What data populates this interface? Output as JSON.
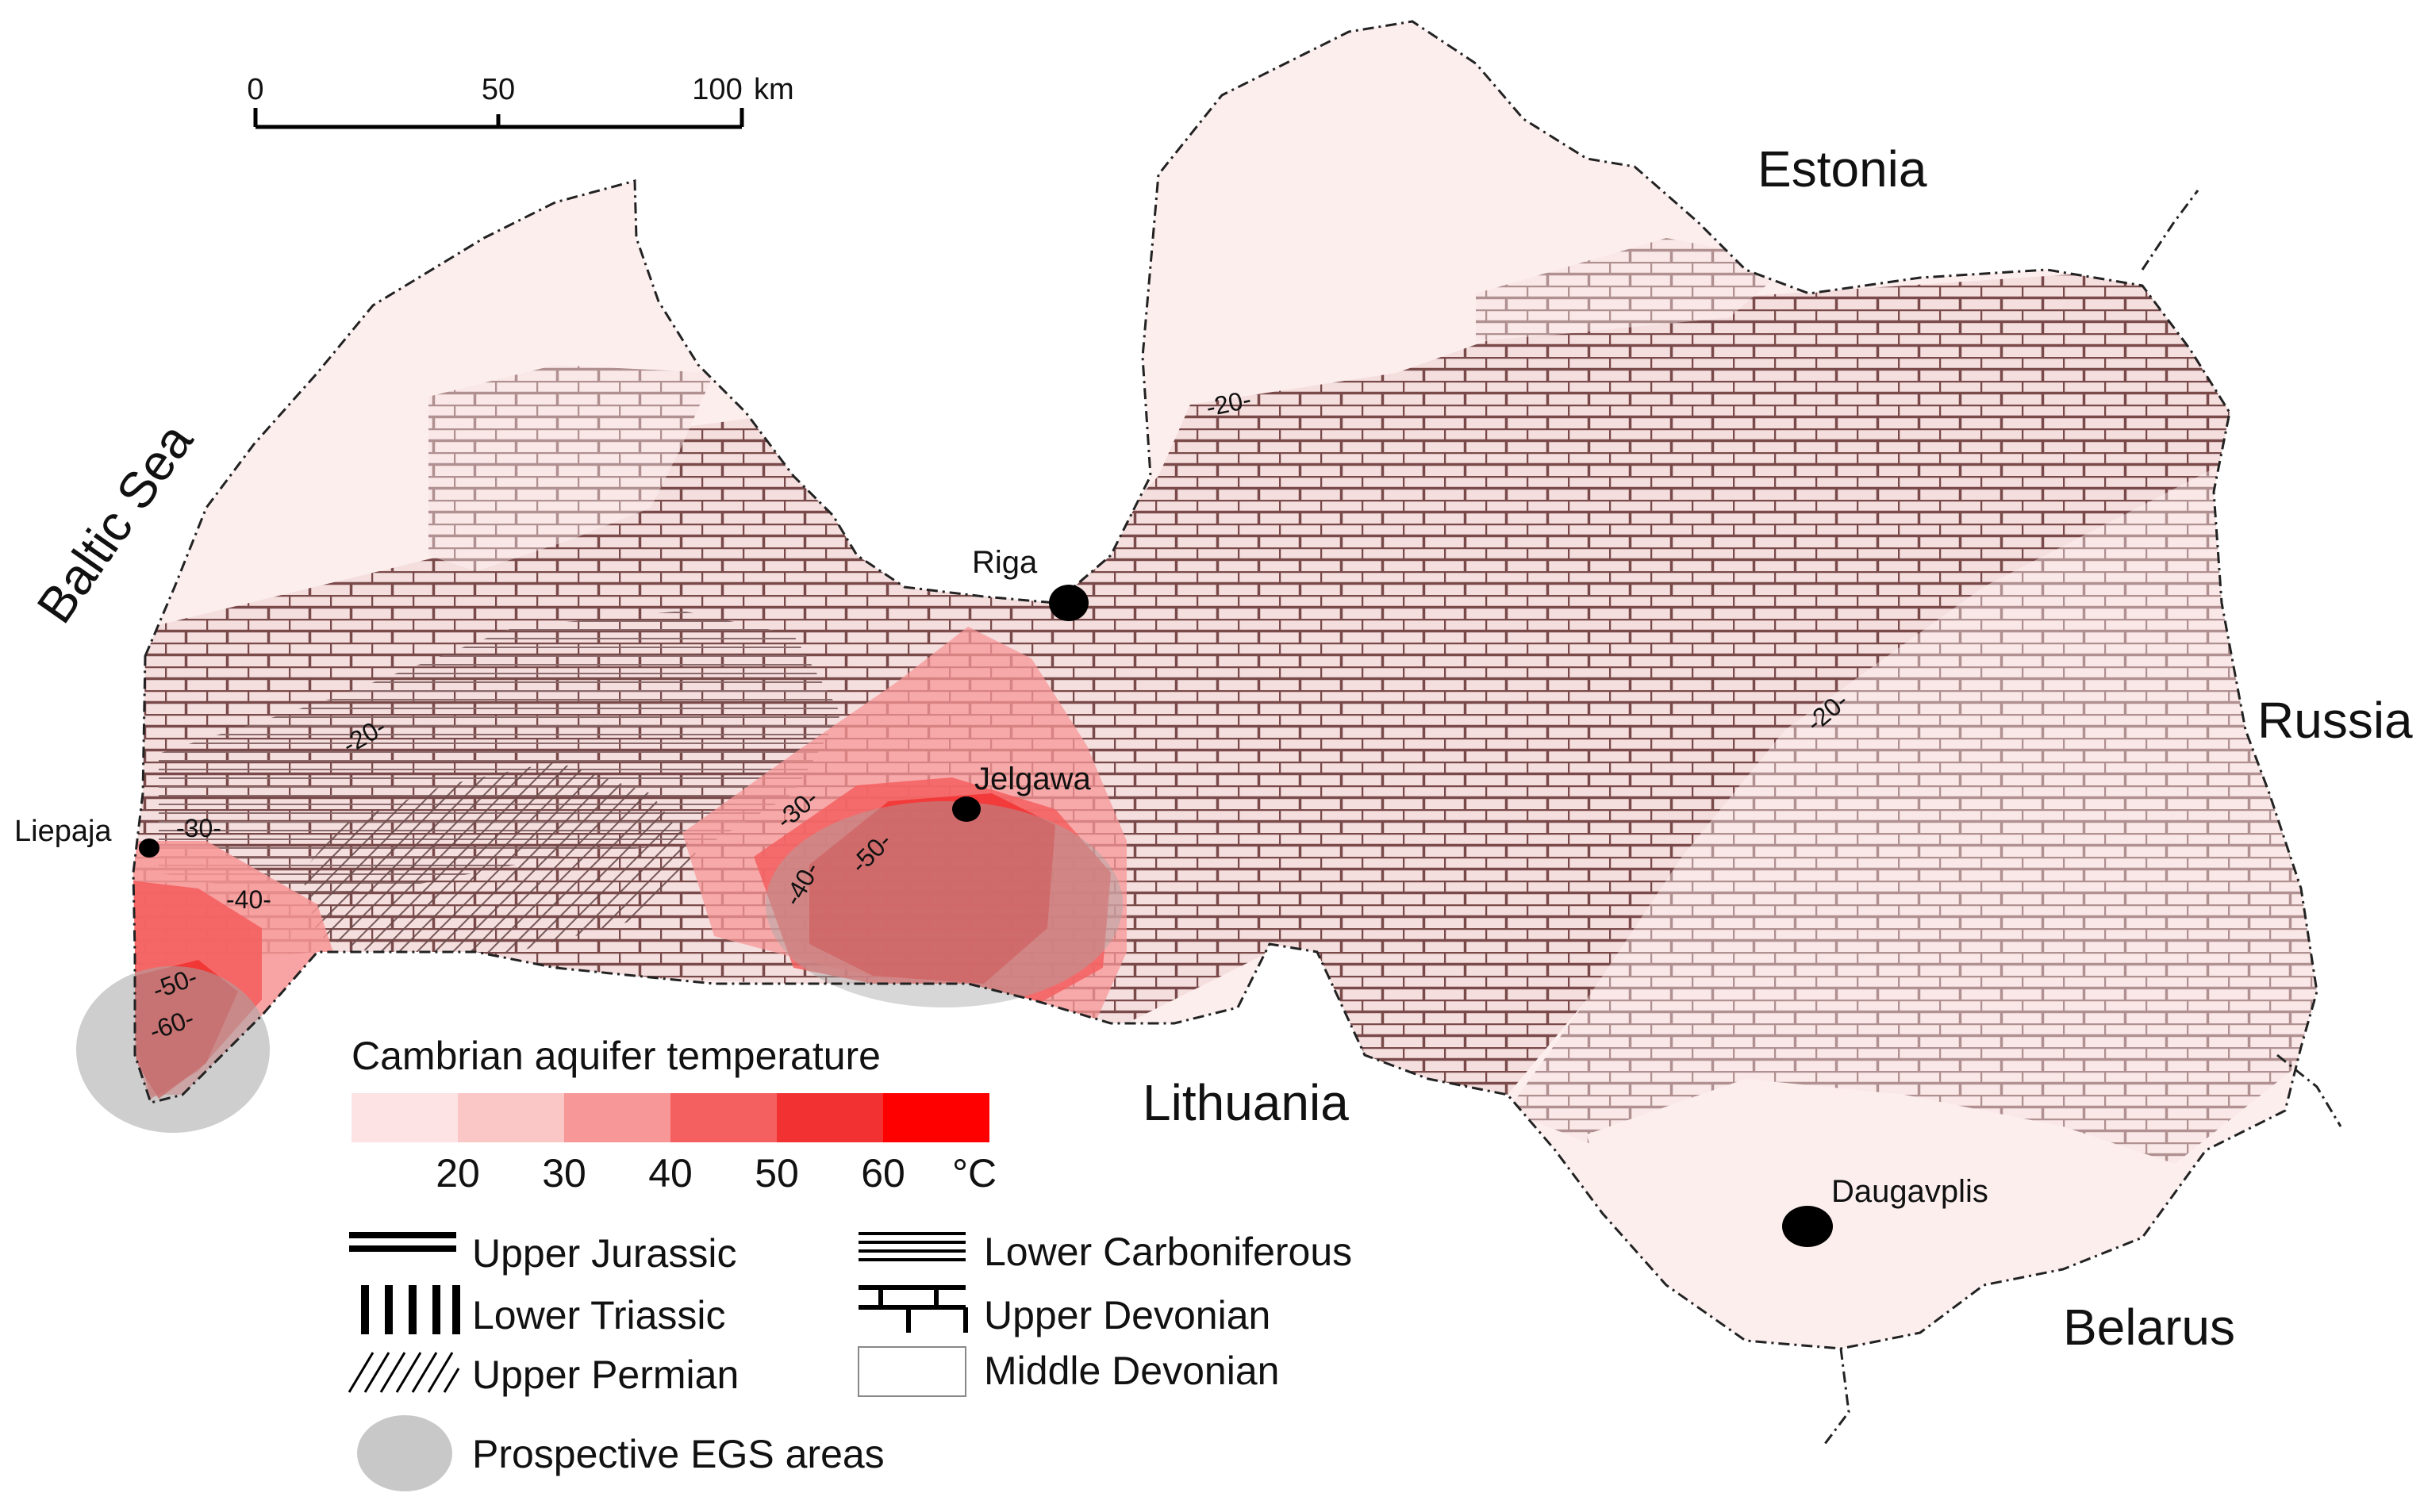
{
  "map": {
    "countries": {
      "estonia": "Estonia",
      "russia": "Russia",
      "lithuania": "Lithuania",
      "belarus": "Belarus"
    },
    "sea": "Baltic Sea",
    "cities": {
      "riga": "Riga",
      "jelgawa": "Jelgawa",
      "liepaja": "Liepaja",
      "daugavplis": "Daugavplis"
    },
    "isotherm_labels": {
      "n20_north": "-20-",
      "n20_west": "-20-",
      "n20_east": "-20-",
      "n30_west": "-30-",
      "n40_west": "-40-",
      "n50_west": "-50-",
      "n60_west": "-60-",
      "n30_center": "-30-",
      "n40_center": "-40-",
      "n50_center": "-50-"
    }
  },
  "scale_bar": {
    "ticks": [
      "0",
      "50",
      "100"
    ],
    "unit": "km"
  },
  "temperature_legend": {
    "title": "Cambrian aquifer temperature",
    "ticks": [
      "20",
      "30",
      "40",
      "50",
      "60"
    ],
    "unit": "°C",
    "colors": [
      "#fde3e3",
      "#fbc6c6",
      "#f89797",
      "#f46060",
      "#f23232",
      "#ff0000"
    ]
  },
  "geology_legend": {
    "upper_jurassic": "Upper Jurassic",
    "lower_triassic": "Lower Triassic",
    "upper_permian": "Upper Permian",
    "lower_carboniferous": "Lower Carboniferous",
    "upper_devonian": "Upper Devonian",
    "middle_devonian": "Middle Devonian",
    "egs": "Prospective EGS areas"
  },
  "colors": {
    "base_pink": "#fdeeee",
    "brick_line": "#7a4a4a",
    "egs_gray": "#a6a6a6"
  }
}
